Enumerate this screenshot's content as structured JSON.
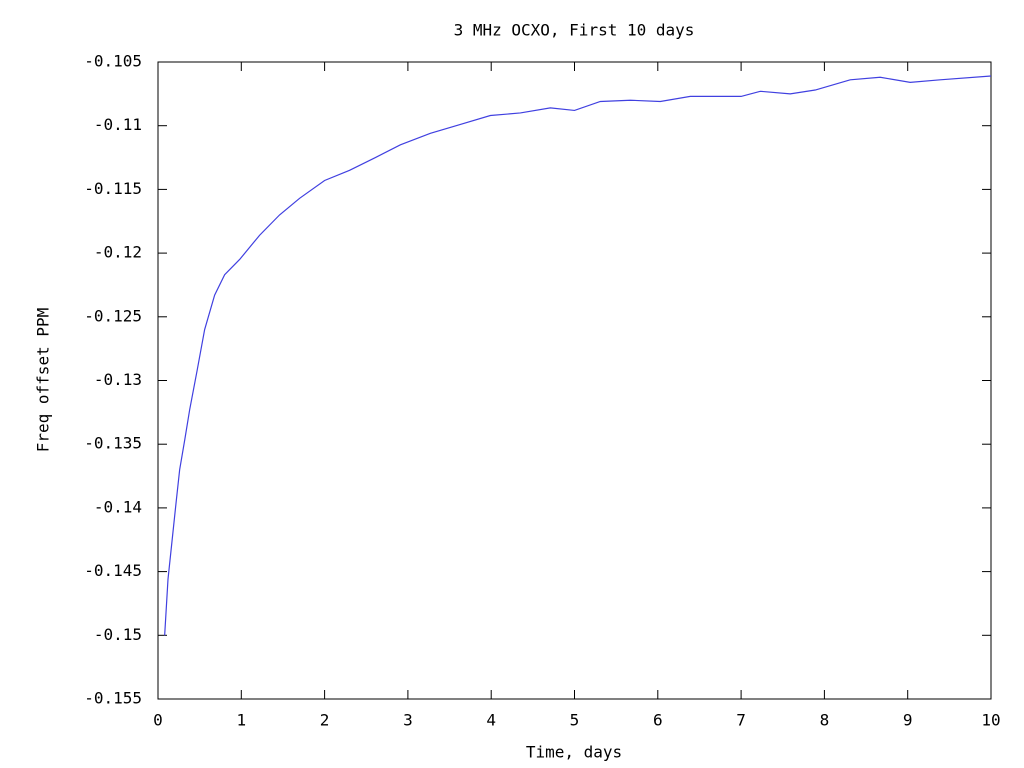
{
  "chart_data": {
    "type": "line",
    "title": "3 MHz OCXO, First 10 days",
    "x_label": "Time, days",
    "y_label": "Freq offset PPM",
    "xlim": [
      0,
      10
    ],
    "xticks": [
      0,
      1,
      2,
      3,
      4,
      5,
      6,
      7,
      8,
      9,
      10
    ],
    "ylim": [
      -0.155,
      -0.105
    ],
    "yticks": [
      -0.155,
      -0.15,
      -0.145,
      -0.14,
      -0.135,
      -0.13,
      -0.125,
      -0.12,
      -0.115,
      -0.11,
      -0.105
    ],
    "grid": false,
    "series": [
      {
        "color": "#4040e0",
        "x": [
          0.08,
          0.12,
          0.17,
          0.22,
          0.26,
          0.32,
          0.38,
          0.47,
          0.56,
          0.68,
          0.8,
          0.98,
          1.22,
          1.46,
          1.7,
          2.0,
          2.3,
          2.61,
          2.91,
          3.27,
          3.63,
          3.99,
          4.35,
          4.71,
          5.0,
          5.31,
          5.67,
          6.03,
          6.39,
          7.0,
          7.23,
          7.59,
          7.89,
          8.31,
          8.67,
          9.03,
          9.39,
          10.0
        ],
        "values": [
          -0.15,
          -0.1456,
          -0.1425,
          -0.1394,
          -0.137,
          -0.1347,
          -0.1323,
          -0.1292,
          -0.126,
          -0.1233,
          -0.1217,
          -0.1205,
          -0.1186,
          -0.117,
          -0.1157,
          -0.1143,
          -0.1135,
          -0.1125,
          -0.1115,
          -0.1106,
          -0.1099,
          -0.1092,
          -0.109,
          -0.1086,
          -0.1088,
          -0.1081,
          -0.108,
          -0.1081,
          -0.1077,
          -0.1077,
          -0.1073,
          -0.1075,
          -0.1072,
          -0.1064,
          -0.1062,
          -0.1066,
          -0.1064,
          -0.1061
        ]
      }
    ]
  }
}
